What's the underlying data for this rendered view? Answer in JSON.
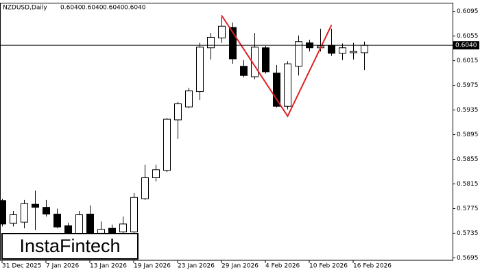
{
  "chart_data": {
    "type": "candlestick",
    "title": "NZDUSD,Daily",
    "header_values": [
      "0.6040",
      "0.6040",
      "0.6040",
      "0.6040"
    ],
    "watermark": "InstaFintech",
    "categories": [
      "31 Dec 2025",
      null,
      null,
      null,
      "7 Jan 2026",
      null,
      null,
      null,
      "13 Jan 2026",
      null,
      null,
      null,
      "19 Jan 2026",
      null,
      null,
      null,
      "23 Jan 2026",
      null,
      null,
      null,
      "29 Jan 2026",
      null,
      null,
      null,
      "4 Feb 2026",
      null,
      null,
      null,
      "10 Feb 2026",
      null,
      null,
      null,
      "16 Feb 2026",
      null
    ],
    "open": [
      0.5788,
      0.5751,
      0.5753,
      0.5782,
      0.5777,
      0.5766,
      0.5747,
      0.5732,
      0.5766,
      0.5735,
      0.5743,
      0.5737,
      0.5737,
      0.5791,
      0.5825,
      0.5837,
      0.5919,
      0.594,
      0.5965,
      0.6036,
      0.6052,
      0.6069,
      0.6006,
      0.5989,
      0.6036,
      0.5995,
      0.5941,
      0.6006,
      0.6044,
      0.6036,
      0.604,
      0.6027,
      0.6028,
      0.6028
    ],
    "high": [
      0.5791,
      0.5771,
      0.5789,
      0.5804,
      0.5789,
      0.5775,
      0.5752,
      0.5771,
      0.578,
      0.5754,
      0.5749,
      0.5762,
      0.58,
      0.5846,
      0.5846,
      0.5922,
      0.5948,
      0.5971,
      0.6044,
      0.606,
      0.6089,
      0.6077,
      0.6016,
      0.606,
      0.6039,
      0.6008,
      0.6014,
      0.6056,
      0.6049,
      0.6067,
      0.6067,
      0.6043,
      0.6044,
      0.6046
    ],
    "low": [
      0.5746,
      0.5746,
      0.5743,
      0.574,
      0.5762,
      0.5743,
      0.573,
      0.573,
      0.5726,
      0.573,
      0.573,
      0.5733,
      0.5733,
      0.5789,
      0.5819,
      0.5834,
      0.5888,
      0.5938,
      0.5951,
      0.6017,
      0.6044,
      0.601,
      0.5988,
      0.5985,
      0.5994,
      0.5939,
      0.5936,
      0.5991,
      0.603,
      0.603,
      0.6023,
      0.6016,
      0.6017,
      0.6
    ],
    "close": [
      0.575,
      0.5765,
      0.5783,
      0.5777,
      0.5766,
      0.5745,
      0.5734,
      0.5765,
      0.573,
      0.5741,
      0.5735,
      0.575,
      0.5793,
      0.5825,
      0.5838,
      0.592,
      0.5945,
      0.5966,
      0.6037,
      0.6053,
      0.6071,
      0.6018,
      0.5991,
      0.6037,
      0.5997,
      0.5941,
      0.601,
      0.6046,
      0.6036,
      0.6039,
      0.6027,
      0.6036,
      0.603,
      0.604
    ],
    "up_color": "#ffffff",
    "down_color": "#000000",
    "ylim": [
      0.5691,
      0.6108
    ],
    "yticks": [
      0.6095,
      0.6055,
      0.6015,
      0.5975,
      0.5935,
      0.5895,
      0.5855,
      0.5815,
      0.5775,
      0.5735,
      0.5695
    ],
    "price_line": {
      "value": 0.604,
      "label": "0.6040"
    },
    "pattern": {
      "color": "#e02020",
      "x": [
        20,
        26,
        30
      ],
      "y": [
        0.6088,
        0.5925,
        0.6073
      ]
    }
  }
}
